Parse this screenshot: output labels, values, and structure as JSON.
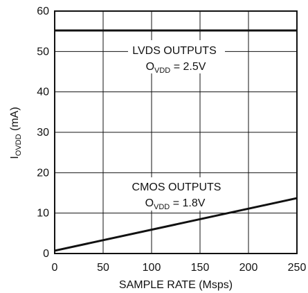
{
  "chart_data": {
    "type": "line",
    "xlabel": "SAMPLE RATE (Msps)",
    "ylabel": {
      "main": "I",
      "sub": "OVDD",
      "unit": " (mA)"
    },
    "xlim": [
      0,
      250
    ],
    "ylim": [
      0,
      60
    ],
    "x_ticks": [
      0,
      50,
      100,
      150,
      200,
      250
    ],
    "y_ticks": [
      0,
      10,
      20,
      30,
      40,
      50,
      60
    ],
    "grid": true,
    "series": [
      {
        "x": [
          0,
          250
        ],
        "y": [
          55.2,
          55.2
        ]
      },
      {
        "x": [
          0,
          250
        ],
        "y": [
          0.7,
          13.7
        ]
      }
    ],
    "annotations": [
      {
        "line1": "LVDS OUTPUTS",
        "line2_main": "O",
        "line2_sub": "VDD",
        "line2_rest": " = 2.5V"
      },
      {
        "line1": "CMOS OUTPUTS",
        "line2_main": "O",
        "line2_sub": "VDD",
        "line2_rest": " = 1.8V"
      }
    ],
    "colors": {
      "line": "#111111",
      "grid": "#111111"
    }
  }
}
